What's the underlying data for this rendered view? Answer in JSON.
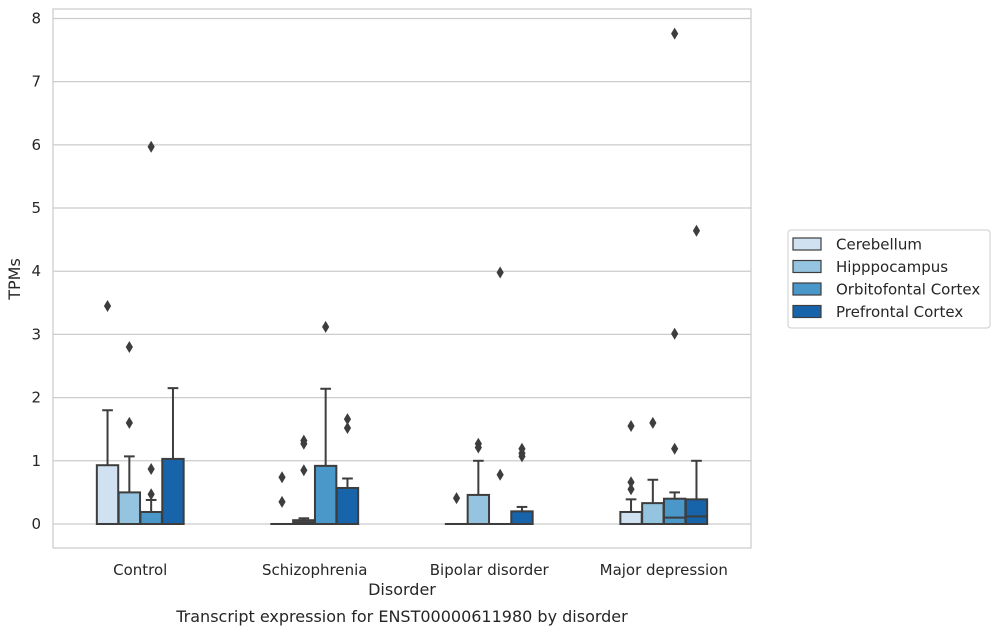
{
  "chart_data": {
    "type": "box",
    "title": "",
    "caption": "Transcript expression for ENST00000611980 by disorder",
    "xlabel": "Disorder",
    "ylabel": "TPMs",
    "ylim": [
      -0.38,
      8.15
    ],
    "yticks": [
      0,
      1,
      2,
      3,
      4,
      5,
      6,
      7,
      8
    ],
    "grid": "horizontal",
    "legend_position": "right",
    "categories": [
      "Control",
      "Schizophrenia",
      "Bipolar disorder",
      "Major depression"
    ],
    "series": [
      {
        "name": "Cerebellum",
        "color": "#d0e1f2",
        "boxes": [
          {
            "q1": 0,
            "median": 0,
            "q3": 0.93,
            "whisker_low": 0,
            "whisker_high": 1.8,
            "outliers": [
              3.45
            ]
          },
          {
            "q1": 0,
            "median": 0,
            "q3": 0,
            "whisker_low": 0,
            "whisker_high": 0,
            "outliers": [
              0.35,
              0.74
            ]
          },
          {
            "q1": 0,
            "median": 0,
            "q3": 0,
            "whisker_low": 0,
            "whisker_high": 0,
            "outliers": [
              0.41
            ]
          },
          {
            "q1": 0,
            "median": 0,
            "q3": 0.19,
            "whisker_low": 0,
            "whisker_high": 0.39,
            "outliers": [
              0.55,
              0.66,
              1.55
            ]
          }
        ]
      },
      {
        "name": "Hipppocampus",
        "color": "#94c4df",
        "boxes": [
          {
            "q1": 0,
            "median": 0,
            "q3": 0.5,
            "whisker_low": 0,
            "whisker_high": 1.07,
            "outliers": [
              1.6,
              2.8
            ]
          },
          {
            "q1": 0,
            "median": 0.03,
            "q3": 0.06,
            "whisker_low": 0,
            "whisker_high": 0.09,
            "outliers": [
              0.85,
              1.27,
              1.32
            ]
          },
          {
            "q1": 0,
            "median": 0,
            "q3": 0.46,
            "whisker_low": 0,
            "whisker_high": 1.0,
            "outliers": [
              1.21,
              1.27
            ]
          },
          {
            "q1": 0,
            "median": 0,
            "q3": 0.33,
            "whisker_low": 0,
            "whisker_high": 0.7,
            "outliers": [
              1.6
            ]
          }
        ]
      },
      {
        "name": "Orbitofontal Cortex",
        "color": "#4a98c9",
        "boxes": [
          {
            "q1": 0,
            "median": 0,
            "q3": 0.19,
            "whisker_low": 0,
            "whisker_high": 0.38,
            "outliers": [
              0.47,
              0.87,
              5.97
            ]
          },
          {
            "q1": 0,
            "median": 0,
            "q3": 0.92,
            "whisker_low": 0,
            "whisker_high": 2.14,
            "outliers": [
              3.12
            ]
          },
          {
            "q1": 0,
            "median": 0,
            "q3": 0,
            "whisker_low": 0,
            "whisker_high": 0,
            "outliers": [
              0.78,
              3.98
            ]
          },
          {
            "q1": 0,
            "median": 0.1,
            "q3": 0.4,
            "whisker_low": 0,
            "whisker_high": 0.5,
            "outliers": [
              1.19,
              3.01,
              7.76
            ]
          }
        ]
      },
      {
        "name": "Prefrontal Cortex",
        "color": "#1764ab",
        "boxes": [
          {
            "q1": 0,
            "median": 0,
            "q3": 1.03,
            "whisker_low": 0,
            "whisker_high": 2.15,
            "outliers": []
          },
          {
            "q1": 0,
            "median": 0,
            "q3": 0.57,
            "whisker_low": 0,
            "whisker_high": 0.72,
            "outliers": [
              1.52,
              1.66
            ]
          },
          {
            "q1": 0,
            "median": 0,
            "q3": 0.2,
            "whisker_low": 0,
            "whisker_high": 0.27,
            "outliers": [
              1.07,
              1.12,
              1.19
            ]
          },
          {
            "q1": 0,
            "median": 0.12,
            "q3": 0.39,
            "whisker_low": 0,
            "whisker_high": 1.0,
            "outliers": [
              4.64
            ]
          }
        ]
      }
    ]
  }
}
